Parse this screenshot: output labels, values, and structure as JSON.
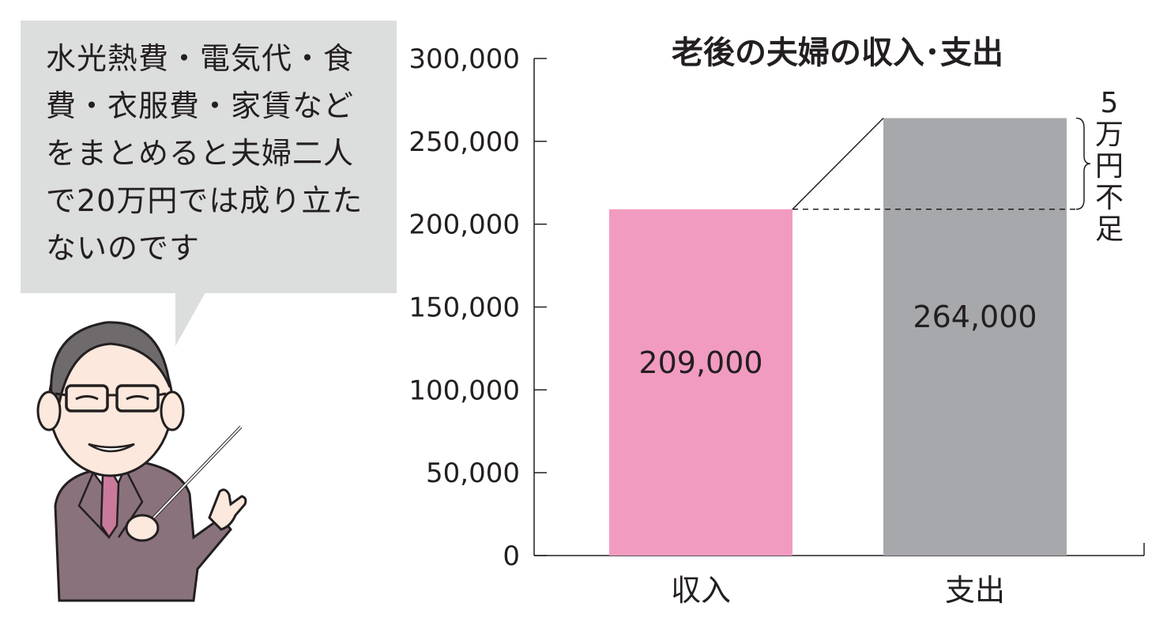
{
  "speech_bubble": {
    "text": "水光熱費・電気代・食費・衣服費・家賃などをまとめると夫婦二人で20万円では成り立たないのです"
  },
  "chart_data": {
    "type": "bar",
    "title": "老後の夫婦の収入･支出",
    "categories": [
      "収入",
      "支出"
    ],
    "values": [
      209000,
      264000
    ],
    "value_labels": [
      "209,000",
      "264,000"
    ],
    "colors": [
      "#f29bc1",
      "#a7a8ab"
    ],
    "ylim": [
      0,
      300000
    ],
    "yticks": [
      0,
      50000,
      100000,
      150000,
      200000,
      250000,
      300000
    ],
    "ytick_labels": [
      "0",
      "50,000",
      "100,000",
      "150,000",
      "200,000",
      "250,000",
      "300,000"
    ],
    "grid": false,
    "annotation": "5万円不足"
  }
}
